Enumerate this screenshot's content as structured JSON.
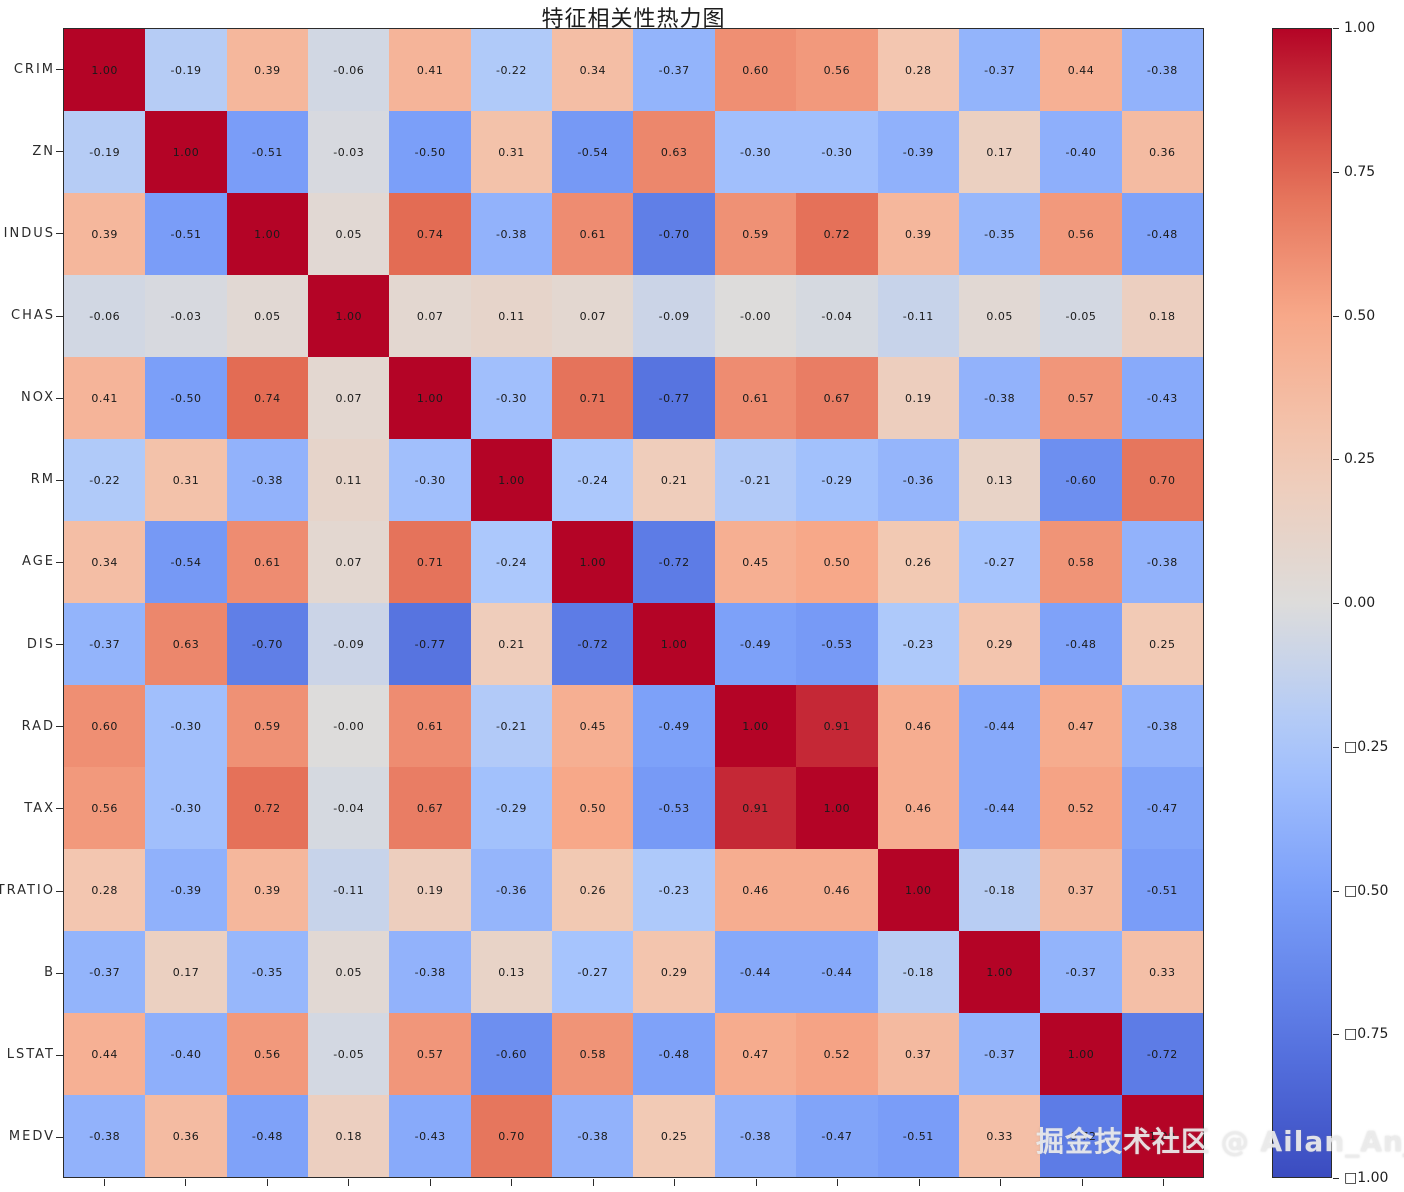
{
  "title": "特征相关性热力图",
  "watermark": "掘金技术社区 @ Ailan_Anjuxi",
  "colors": {
    "max_red": "#b40426",
    "mid_neutral": "#dddcdb",
    "min_blue": "#3b4cc0",
    "axis": "#2b2b2b"
  },
  "chart_data": {
    "type": "heatmap",
    "title": "特征相关性热力图",
    "colormap": "coolwarm",
    "value_range": [
      -1,
      1
    ],
    "legend_position": "right",
    "x_tick_labels_visible": false,
    "labels": [
      "CRIM",
      "ZN",
      "INDUS",
      "CHAS",
      "NOX",
      "RM",
      "AGE",
      "DIS",
      "RAD",
      "TAX",
      "PTRATIO",
      "B",
      "LSTAT",
      "MEDV"
    ],
    "matrix": [
      [
        "1.00",
        "-0.19",
        "0.39",
        "-0.06",
        "0.41",
        "-0.22",
        "0.34",
        "-0.37",
        "0.60",
        "0.56",
        "0.28",
        "-0.37",
        "0.44",
        "-0.38"
      ],
      [
        "-0.19",
        "1.00",
        "-0.51",
        "-0.03",
        "-0.50",
        "0.31",
        "-0.54",
        "0.63",
        "-0.30",
        "-0.30",
        "-0.39",
        "0.17",
        "-0.40",
        "0.36"
      ],
      [
        "0.39",
        "-0.51",
        "1.00",
        "0.05",
        "0.74",
        "-0.38",
        "0.61",
        "-0.70",
        "0.59",
        "0.72",
        "0.39",
        "-0.35",
        "0.56",
        "-0.48"
      ],
      [
        "-0.06",
        "-0.03",
        "0.05",
        "1.00",
        "0.07",
        "0.11",
        "0.07",
        "-0.09",
        "-0.00",
        "-0.04",
        "-0.11",
        "0.05",
        "-0.05",
        "0.18"
      ],
      [
        "0.41",
        "-0.50",
        "0.74",
        "0.07",
        "1.00",
        "-0.30",
        "0.71",
        "-0.77",
        "0.61",
        "0.67",
        "0.19",
        "-0.38",
        "0.57",
        "-0.43"
      ],
      [
        "-0.22",
        "0.31",
        "-0.38",
        "0.11",
        "-0.30",
        "1.00",
        "-0.24",
        "0.21",
        "-0.21",
        "-0.29",
        "-0.36",
        "0.13",
        "-0.60",
        "0.70"
      ],
      [
        "0.34",
        "-0.54",
        "0.61",
        "0.07",
        "0.71",
        "-0.24",
        "1.00",
        "-0.72",
        "0.45",
        "0.50",
        "0.26",
        "-0.27",
        "0.58",
        "-0.38"
      ],
      [
        "-0.37",
        "0.63",
        "-0.70",
        "-0.09",
        "-0.77",
        "0.21",
        "-0.72",
        "1.00",
        "-0.49",
        "-0.53",
        "-0.23",
        "0.29",
        "-0.48",
        "0.25"
      ],
      [
        "0.60",
        "-0.30",
        "0.59",
        "-0.00",
        "0.61",
        "-0.21",
        "0.45",
        "-0.49",
        "1.00",
        "0.91",
        "0.46",
        "-0.44",
        "0.47",
        "-0.38"
      ],
      [
        "0.56",
        "-0.30",
        "0.72",
        "-0.04",
        "0.67",
        "-0.29",
        "0.50",
        "-0.53",
        "0.91",
        "1.00",
        "0.46",
        "-0.44",
        "0.52",
        "-0.47"
      ],
      [
        "0.28",
        "-0.39",
        "0.39",
        "-0.11",
        "0.19",
        "-0.36",
        "0.26",
        "-0.23",
        "0.46",
        "0.46",
        "1.00",
        "-0.18",
        "0.37",
        "-0.51"
      ],
      [
        "-0.37",
        "0.17",
        "-0.35",
        "0.05",
        "-0.38",
        "0.13",
        "-0.27",
        "0.29",
        "-0.44",
        "-0.44",
        "-0.18",
        "1.00",
        "-0.37",
        "0.33"
      ],
      [
        "0.44",
        "-0.40",
        "0.56",
        "-0.05",
        "0.57",
        "-0.60",
        "0.58",
        "-0.48",
        "0.47",
        "0.52",
        "0.37",
        "-0.37",
        "1.00",
        "-0.72"
      ],
      [
        "-0.38",
        "0.36",
        "-0.48",
        "0.18",
        "-0.43",
        "0.70",
        "-0.38",
        "0.25",
        "-0.38",
        "-0.47",
        "-0.51",
        "0.33",
        "-0.72",
        "1.00"
      ]
    ],
    "colorbar_tick_labels": [
      "1.00",
      "0.75",
      "0.50",
      "0.25",
      "0.00",
      "□0.25",
      "□0.50",
      "□0.75",
      "□1.00"
    ]
  }
}
